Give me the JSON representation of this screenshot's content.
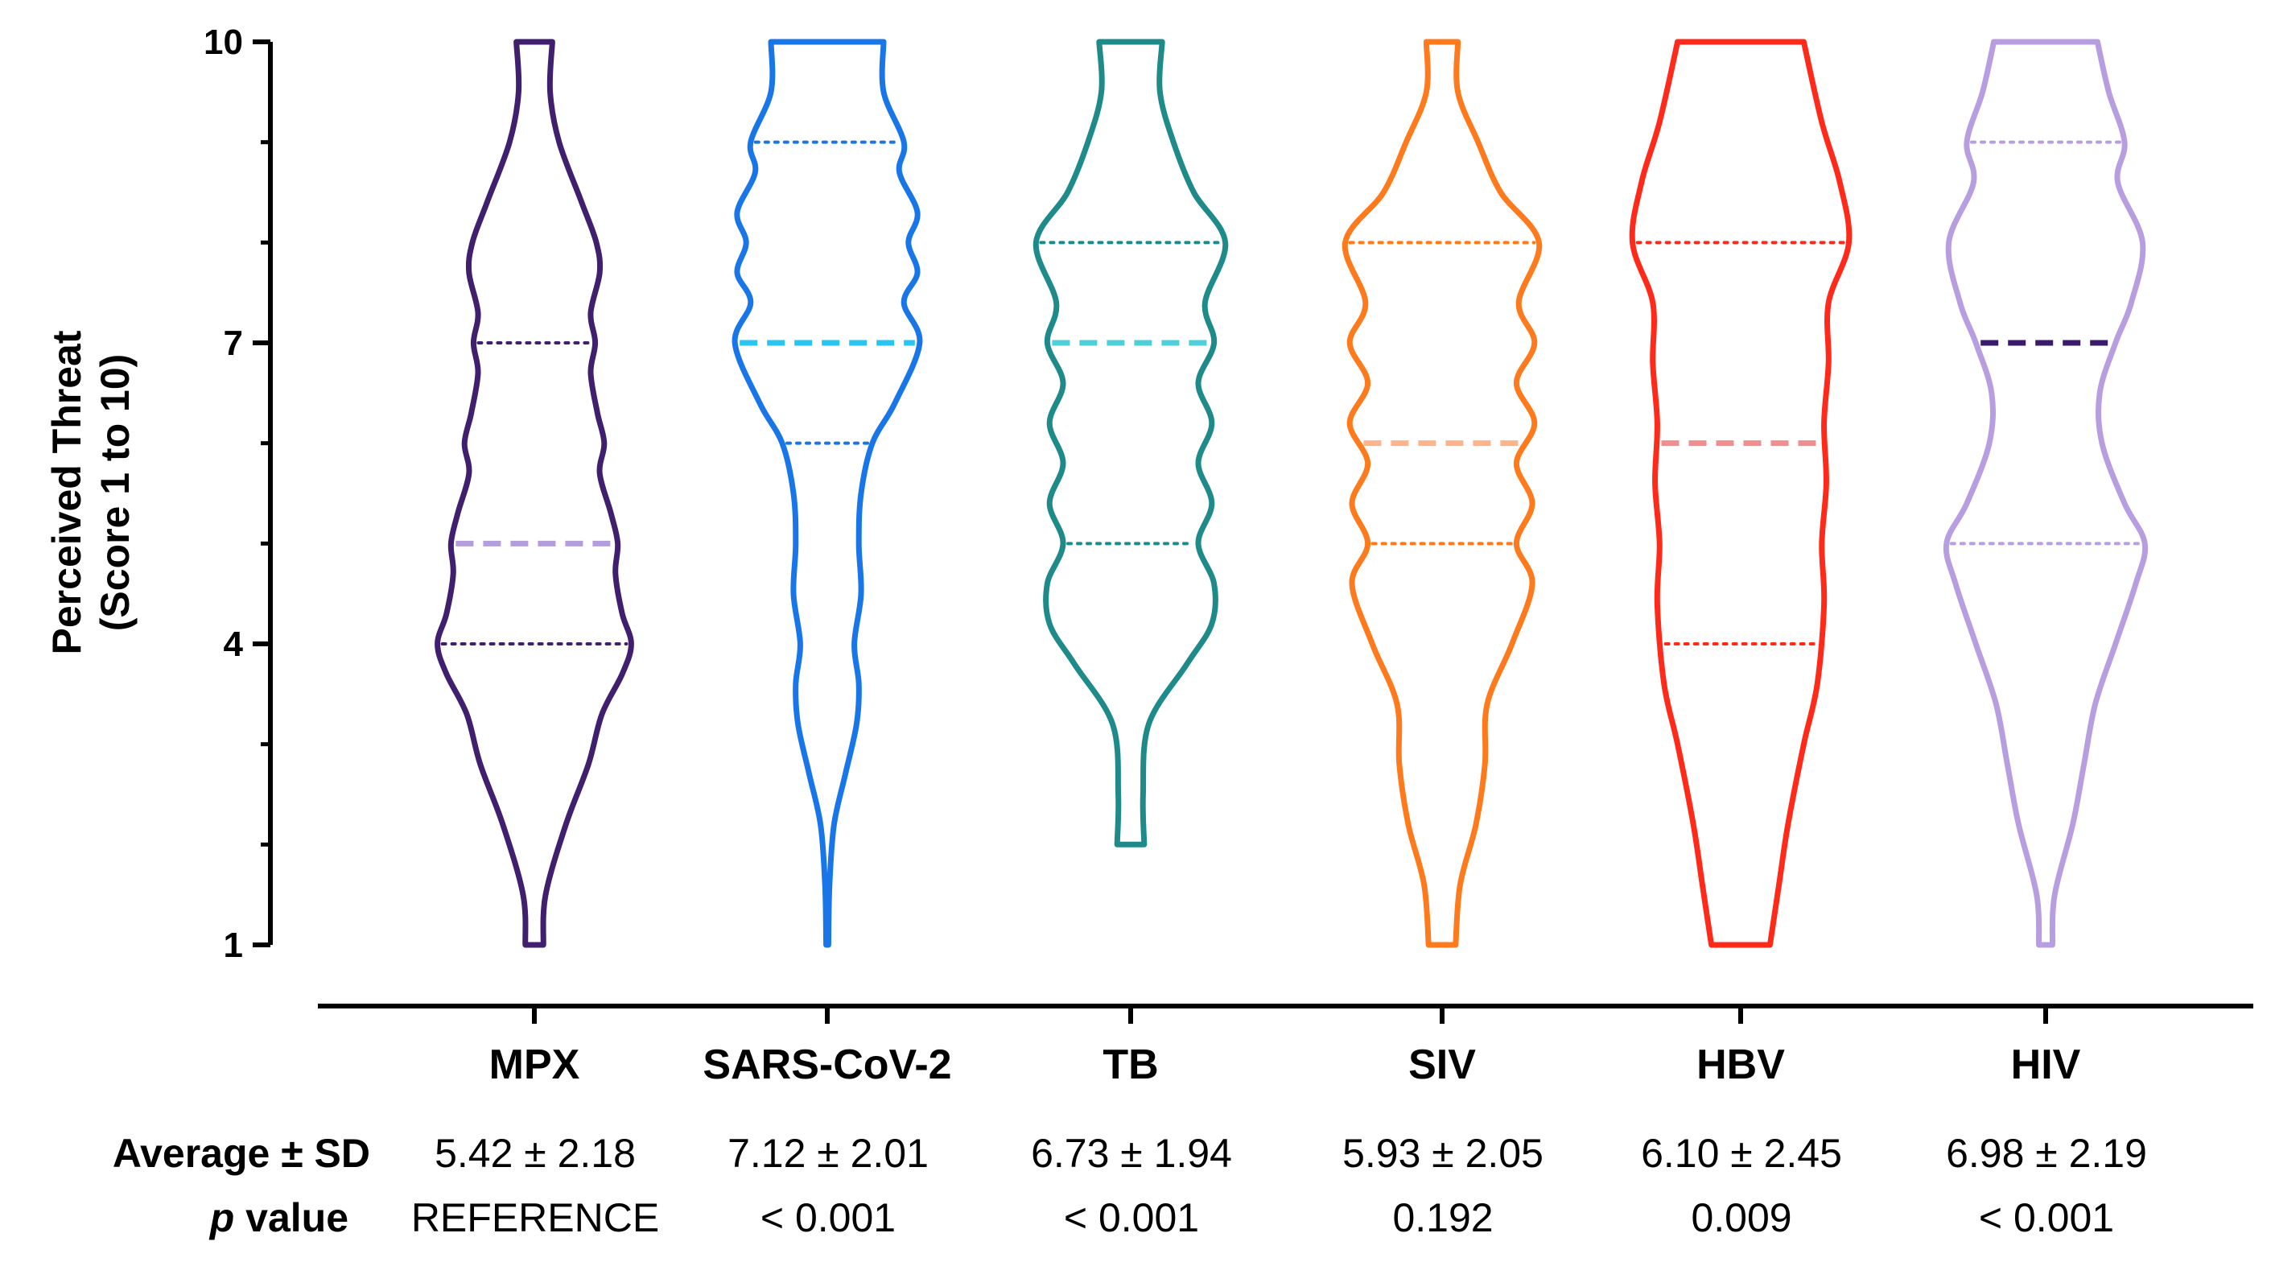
{
  "chart_data": {
    "type": "violin",
    "ylabel_line1": "Perceived Threat",
    "ylabel_line2": "(Score 1 to 10)",
    "ylim": [
      1,
      10
    ],
    "yticks": [
      1,
      4,
      7,
      10
    ],
    "categories": [
      "MPX",
      "SARS-CoV-2",
      "TB",
      "SIV",
      "HBV",
      "HIV"
    ],
    "series": [
      {
        "name": "MPX",
        "color": "#3f1f6e",
        "median_color": "#b39ddb",
        "ymin": 1,
        "ymax": 10,
        "median": 5,
        "quartiles": [
          4,
          7
        ],
        "profile": [
          [
            1,
            0.08
          ],
          [
            1.5,
            0.1
          ],
          [
            2.2,
            0.28
          ],
          [
            2.8,
            0.48
          ],
          [
            3.3,
            0.6
          ],
          [
            3.7,
            0.78
          ],
          [
            4,
            0.86
          ],
          [
            4.3,
            0.78
          ],
          [
            4.7,
            0.72
          ],
          [
            5,
            0.74
          ],
          [
            5.3,
            0.68
          ],
          [
            5.7,
            0.58
          ],
          [
            6,
            0.62
          ],
          [
            6.3,
            0.56
          ],
          [
            6.7,
            0.5
          ],
          [
            7,
            0.54
          ],
          [
            7.3,
            0.5
          ],
          [
            7.7,
            0.58
          ],
          [
            8,
            0.55
          ],
          [
            8.4,
            0.42
          ],
          [
            9,
            0.22
          ],
          [
            9.5,
            0.14
          ],
          [
            10,
            0.16
          ]
        ],
        "average_sd": "5.42 ± 2.18",
        "p_value": "REFERENCE"
      },
      {
        "name": "SARS-CoV-2",
        "color": "#1976e8",
        "median_color": "#29c5f0",
        "ymin": 1,
        "ymax": 10,
        "median": 7,
        "quartiles": [
          6,
          9
        ],
        "profile": [
          [
            1,
            0.01
          ],
          [
            1.6,
            0.02
          ],
          [
            2.2,
            0.06
          ],
          [
            2.7,
            0.16
          ],
          [
            3.2,
            0.26
          ],
          [
            3.6,
            0.28
          ],
          [
            4,
            0.24
          ],
          [
            4.5,
            0.3
          ],
          [
            5,
            0.28
          ],
          [
            5.5,
            0.3
          ],
          [
            6,
            0.4
          ],
          [
            6.4,
            0.6
          ],
          [
            7,
            0.82
          ],
          [
            7.4,
            0.68
          ],
          [
            7.7,
            0.8
          ],
          [
            8,
            0.72
          ],
          [
            8.3,
            0.8
          ],
          [
            8.7,
            0.64
          ],
          [
            9,
            0.68
          ],
          [
            9.5,
            0.5
          ],
          [
            10,
            0.5
          ]
        ],
        "average_sd": "7.12 ± 2.01",
        "p_value": "< 0.001"
      },
      {
        "name": "TB",
        "color": "#1f8a8a",
        "median_color": "#4fcfd8",
        "ymin": 2,
        "ymax": 10,
        "median": 7,
        "quartiles": [
          5,
          8
        ],
        "profile": [
          [
            2,
            0.12
          ],
          [
            2.5,
            0.11
          ],
          [
            3.2,
            0.16
          ],
          [
            3.8,
            0.5
          ],
          [
            4.2,
            0.72
          ],
          [
            4.6,
            0.74
          ],
          [
            5,
            0.6
          ],
          [
            5.4,
            0.72
          ],
          [
            5.8,
            0.6
          ],
          [
            6.2,
            0.72
          ],
          [
            6.6,
            0.6
          ],
          [
            7,
            0.74
          ],
          [
            7.4,
            0.66
          ],
          [
            8,
            0.84
          ],
          [
            8.5,
            0.56
          ],
          [
            9,
            0.38
          ],
          [
            9.5,
            0.26
          ],
          [
            10,
            0.28
          ]
        ],
        "average_sd": "6.73 ± 1.94",
        "p_value": "< 0.001"
      },
      {
        "name": "SIV",
        "color": "#ff7a1c",
        "median_color": "#ffb38a",
        "ymin": 1,
        "ymax": 10,
        "median": 6,
        "quartiles": [
          5,
          8
        ],
        "profile": [
          [
            1,
            0.12
          ],
          [
            1.6,
            0.16
          ],
          [
            2.2,
            0.3
          ],
          [
            2.8,
            0.38
          ],
          [
            3.4,
            0.4
          ],
          [
            4,
            0.62
          ],
          [
            4.6,
            0.8
          ],
          [
            5,
            0.66
          ],
          [
            5.4,
            0.8
          ],
          [
            5.8,
            0.66
          ],
          [
            6.2,
            0.82
          ],
          [
            6.6,
            0.66
          ],
          [
            7,
            0.82
          ],
          [
            7.4,
            0.68
          ],
          [
            8,
            0.86
          ],
          [
            8.5,
            0.52
          ],
          [
            9,
            0.32
          ],
          [
            9.5,
            0.14
          ],
          [
            10,
            0.14
          ]
        ],
        "average_sd": "5.93 ± 2.05",
        "p_value": "0.192"
      },
      {
        "name": "HBV",
        "color": "#ff2a1a",
        "median_color": "#f28e8e",
        "ymin": 1,
        "ymax": 10,
        "median": 6,
        "quartiles": [
          4,
          8
        ],
        "profile": [
          [
            1,
            0.26
          ],
          [
            1.6,
            0.34
          ],
          [
            2.2,
            0.42
          ],
          [
            3,
            0.56
          ],
          [
            3.6,
            0.68
          ],
          [
            4.4,
            0.74
          ],
          [
            5,
            0.72
          ],
          [
            5.6,
            0.76
          ],
          [
            6.2,
            0.74
          ],
          [
            6.8,
            0.78
          ],
          [
            7.4,
            0.78
          ],
          [
            8,
            0.96
          ],
          [
            8.6,
            0.88
          ],
          [
            9.2,
            0.72
          ],
          [
            10,
            0.56
          ]
        ],
        "average_sd": "6.10 ± 2.45",
        "p_value": "0.009"
      },
      {
        "name": "HIV",
        "color": "#b79ee0",
        "median_color": "#3a1a6b",
        "ymin": 1,
        "ymax": 10,
        "median": 7,
        "quartiles": [
          5,
          9
        ],
        "profile": [
          [
            1,
            0.06
          ],
          [
            1.5,
            0.08
          ],
          [
            2.2,
            0.24
          ],
          [
            2.8,
            0.34
          ],
          [
            3.4,
            0.44
          ],
          [
            4,
            0.62
          ],
          [
            4.6,
            0.8
          ],
          [
            5,
            0.88
          ],
          [
            5.4,
            0.7
          ],
          [
            6,
            0.5
          ],
          [
            6.5,
            0.48
          ],
          [
            7,
            0.62
          ],
          [
            7.4,
            0.76
          ],
          [
            8,
            0.86
          ],
          [
            8.6,
            0.64
          ],
          [
            9,
            0.7
          ],
          [
            9.5,
            0.56
          ],
          [
            10,
            0.46
          ]
        ],
        "average_sd": "6.98 ± 2.19",
        "p_value": "< 0.001"
      }
    ]
  },
  "table": {
    "average_label": "Average ± SD",
    "p_label_italic": "p",
    "p_label_rest": " value"
  }
}
